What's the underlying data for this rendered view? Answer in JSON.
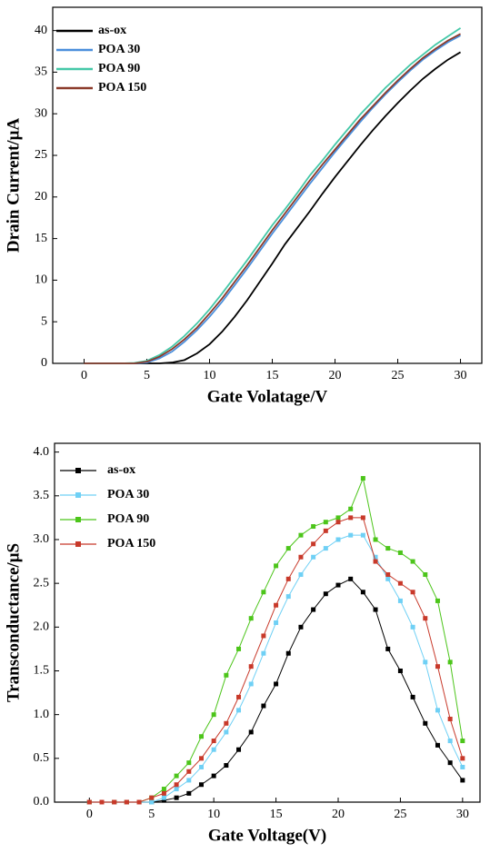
{
  "chart_data": [
    {
      "type": "line",
      "xlabel": "Gate Volatage/V",
      "ylabel": "Drain Current/μA",
      "x": [
        0,
        1,
        2,
        3,
        4,
        5,
        6,
        7,
        8,
        9,
        10,
        11,
        12,
        13,
        14,
        15,
        16,
        17,
        18,
        19,
        20,
        21,
        22,
        23,
        24,
        25,
        26,
        27,
        28,
        29,
        30
      ],
      "xlim": [
        -2.5,
        31.7
      ],
      "xticks": [
        0,
        5,
        10,
        15,
        20,
        25,
        30
      ],
      "ylim": [
        0,
        42.8
      ],
      "yticks": [
        0,
        5,
        10,
        15,
        20,
        25,
        30,
        35,
        40
      ],
      "legend": "upper left",
      "markers": false,
      "series": [
        {
          "name": "as-ox",
          "color": "#000000",
          "values": [
            0,
            0,
            0,
            0,
            0,
            0,
            0,
            0.1,
            0.4,
            1.2,
            2.3,
            3.8,
            5.6,
            7.6,
            9.8,
            12,
            14.3,
            16.3,
            18.3,
            20.4,
            22.4,
            24.3,
            26.2,
            28,
            29.7,
            31.3,
            32.8,
            34.2,
            35.4,
            36.5,
            37.4
          ]
        },
        {
          "name": "POA 30",
          "color": "#4a8fdc",
          "values": [
            0,
            0,
            0,
            0,
            0,
            0.1,
            0.6,
            1.4,
            2.6,
            4.0,
            5.6,
            7.4,
            9.4,
            11.4,
            13.5,
            15.6,
            17.6,
            19.6,
            21.6,
            23.5,
            25.4,
            27.2,
            29,
            30.7,
            32.3,
            33.8,
            35.2,
            36.5,
            37.6,
            38.6,
            39.4
          ]
        },
        {
          "name": "POA 90",
          "color": "#44c8a8",
          "values": [
            0,
            0,
            0,
            0,
            0.05,
            0.3,
            1.0,
            2.0,
            3.3,
            4.8,
            6.5,
            8.4,
            10.4,
            12.4,
            14.5,
            16.6,
            18.5,
            20.5,
            22.6,
            24.4,
            26.3,
            28.1,
            29.9,
            31.5,
            33.1,
            34.5,
            35.9,
            37.1,
            38.3,
            39.3,
            40.3
          ]
        },
        {
          "name": "POA 150",
          "color": "#8b3a2a",
          "values": [
            0,
            0,
            0,
            0,
            0,
            0.2,
            0.8,
            1.7,
            2.9,
            4.3,
            6.0,
            7.8,
            9.8,
            11.8,
            13.9,
            16,
            18,
            20,
            22,
            23.9,
            25.7,
            27.5,
            29.3,
            30.9,
            32.5,
            34,
            35.4,
            36.7,
            37.8,
            38.8,
            39.6
          ]
        }
      ]
    },
    {
      "type": "line",
      "xlabel": "Gate Voltage(V)",
      "ylabel": "Transconductance/μS",
      "x": [
        0,
        1,
        2,
        3,
        4,
        5,
        6,
        7,
        8,
        9,
        10,
        11,
        12,
        13,
        14,
        15,
        16,
        17,
        18,
        19,
        20,
        21,
        22,
        23,
        24,
        25,
        26,
        27,
        28,
        29,
        30
      ],
      "xlim": [
        -2.8,
        31.4
      ],
      "xticks": [
        0,
        5,
        10,
        15,
        20,
        25,
        30
      ],
      "ylim": [
        0,
        4.1
      ],
      "yticks": [
        {
          "value": 0,
          "label": "0.0"
        },
        0.5,
        {
          "value": 1,
          "label": "1.0"
        },
        1.5,
        {
          "value": 2,
          "label": "2.0"
        },
        2.5,
        {
          "value": 3,
          "label": "3.0"
        },
        3.5,
        {
          "value": 4,
          "label": "4.0"
        }
      ],
      "legend": "upper left",
      "markers": true,
      "series": [
        {
          "name": "as-ox",
          "color": "#000000",
          "values": [
            0,
            0,
            0,
            0,
            0,
            0,
            0.02,
            0.05,
            0.1,
            0.2,
            0.3,
            0.42,
            0.6,
            0.8,
            1.1,
            1.35,
            1.7,
            2.0,
            2.2,
            2.38,
            2.48,
            2.55,
            2.4,
            2.2,
            1.75,
            1.5,
            1.2,
            0.9,
            0.65,
            0.45,
            0.25
          ]
        },
        {
          "name": "POA 30",
          "color": "#6fd0f5",
          "values": [
            0,
            0,
            0,
            0,
            0,
            0,
            0.05,
            0.15,
            0.25,
            0.4,
            0.6,
            0.8,
            1.05,
            1.35,
            1.7,
            2.05,
            2.35,
            2.6,
            2.8,
            2.9,
            3.0,
            3.05,
            3.05,
            2.8,
            2.55,
            2.3,
            2.0,
            1.6,
            1.05,
            0.7,
            0.4
          ]
        },
        {
          "name": "POA 90",
          "color": "#4cc51a",
          "values": [
            0,
            0,
            0,
            0,
            0,
            0.05,
            0.15,
            0.3,
            0.45,
            0.75,
            1.0,
            1.45,
            1.75,
            2.1,
            2.4,
            2.7,
            2.9,
            3.05,
            3.15,
            3.2,
            3.25,
            3.35,
            3.7,
            3.0,
            2.9,
            2.85,
            2.75,
            2.6,
            2.3,
            1.6,
            0.7
          ]
        },
        {
          "name": "POA 150",
          "color": "#c8392a",
          "values": [
            0,
            0,
            0,
            0,
            0,
            0.05,
            0.1,
            0.2,
            0.35,
            0.5,
            0.7,
            0.9,
            1.2,
            1.55,
            1.9,
            2.25,
            2.55,
            2.8,
            2.95,
            3.1,
            3.2,
            3.25,
            3.25,
            2.75,
            2.6,
            2.5,
            2.4,
            2.1,
            1.55,
            0.95,
            0.5
          ]
        }
      ]
    }
  ]
}
